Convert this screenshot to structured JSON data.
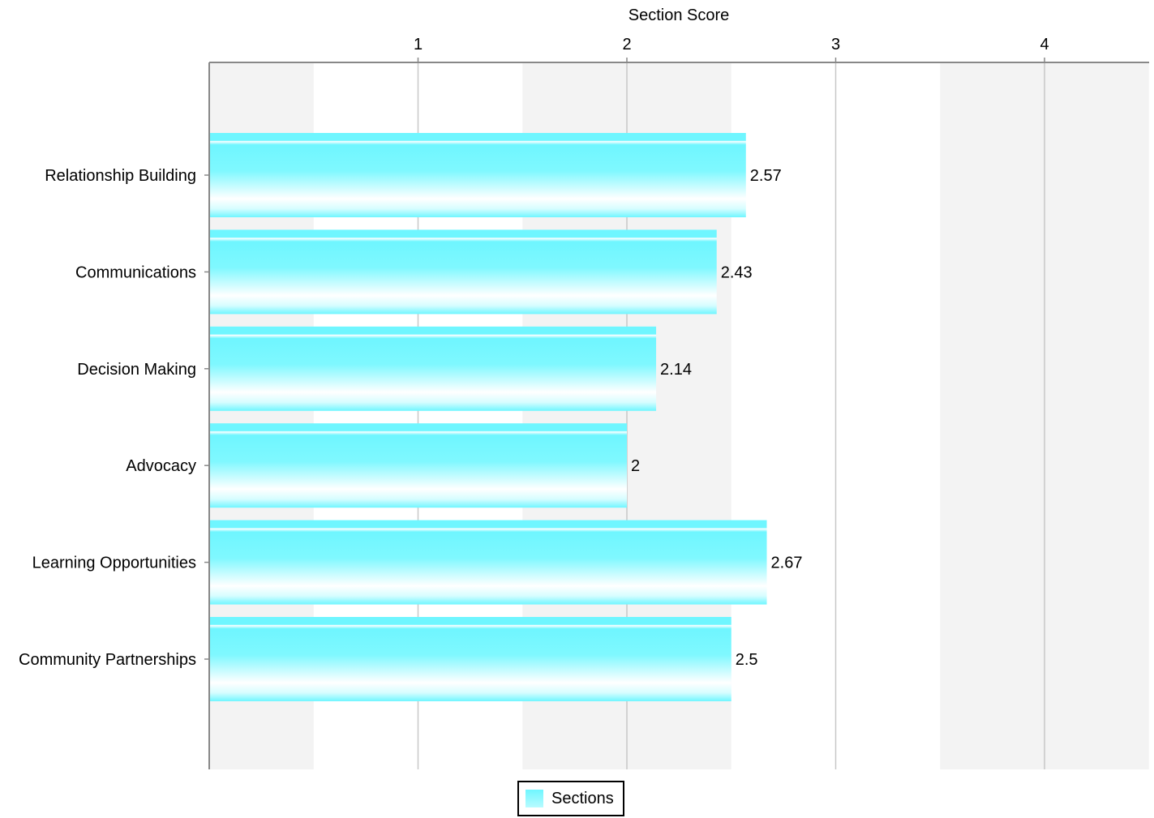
{
  "chart_data": {
    "type": "bar",
    "orientation": "horizontal",
    "title": "",
    "xlabel": "Section Score",
    "ylabel": "",
    "xlim": [
      0,
      4.5
    ],
    "x_ticks": [
      1,
      2,
      3,
      4
    ],
    "x_axis_position": "top",
    "grid": true,
    "legend_placement": "bottom-center",
    "categories": [
      "Relationship Building",
      "Communications",
      "Decision Making",
      "Advocacy",
      "Learning Opportunities",
      "Community Partnerships"
    ],
    "series": [
      {
        "name": "Sections",
        "values": [
          2.57,
          2.43,
          2.14,
          2,
          2.67,
          2.5
        ],
        "labels": [
          "2.57",
          "2.43",
          "2.14",
          "2",
          "2.67",
          "2.5"
        ]
      }
    ],
    "colors": {
      "bar_top": "#6ff6ff",
      "bar_bottom": "#ffffff",
      "band": "#f3f3f3",
      "grid": "#c8c8c8",
      "axis": "#888888"
    }
  }
}
